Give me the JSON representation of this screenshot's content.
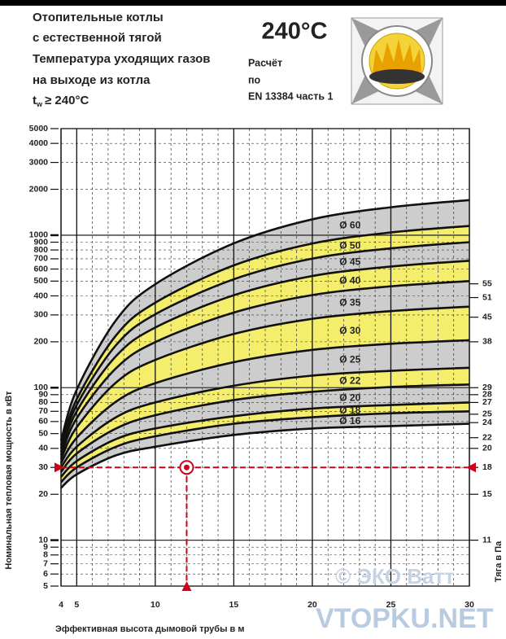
{
  "header": {
    "lines": [
      "Отопительные котлы",
      "с естественной тягой",
      "Температура уходящих газов",
      "на выходе из котла"
    ],
    "temp_symbol": "t",
    "temp_subscript": "w",
    "temp_condition": "≥ 240°C",
    "big": "240°C",
    "calc": [
      "Расчёт",
      "по",
      "EN 13384 часть 1"
    ]
  },
  "chart_data": {
    "type": "band",
    "xlabel": "Эффективная высота дымовой трубы в м",
    "ylabel": "Номинальная тепловая мощность в кВт",
    "xlim": [
      4,
      30
    ],
    "ylim": [
      5,
      5000
    ],
    "log_y": true,
    "xticks": [
      4,
      5,
      10,
      15,
      20,
      25,
      30
    ],
    "x_minor": [
      6,
      7,
      8,
      9,
      11,
      12,
      13,
      14,
      16,
      17,
      18,
      19,
      21,
      22,
      23,
      24,
      26,
      27,
      28,
      29
    ],
    "yticks": [
      5,
      6,
      7,
      8,
      9,
      10,
      20,
      30,
      40,
      50,
      60,
      70,
      80,
      90,
      100,
      200,
      300,
      400,
      500,
      600,
      700,
      800,
      900,
      1000,
      2000,
      3000,
      4000,
      5000
    ],
    "x": [
      4,
      5,
      7.5,
      10,
      15,
      20,
      25,
      30
    ],
    "line_color": "#111111",
    "boundaries": [
      {
        "values": [
          45,
          97,
          277,
          477,
          884,
          1271,
          1525,
          1700
        ]
      },
      {
        "values": [
          42,
          84,
          220,
          361,
          634,
          882,
          1042,
          1150
        ]
      },
      {
        "values": [
          40,
          77,
          190,
          303,
          514,
          702,
          820,
          900
        ]
      },
      {
        "values": [
          38,
          70,
          161,
          248,
          404,
          540,
          623,
          680
        ]
      },
      {
        "values": [
          36,
          63,
          134,
          199,
          311,
          405,
          462,
          500
        ]
      },
      {
        "values": [
          34,
          55,
          108,
          152,
          225,
          283,
          318,
          340
        ]
      },
      {
        "values": [
          32,
          47,
          81,
          107,
          147,
          177,
          194,
          205
        ]
      },
      {
        "values": [
          30,
          41,
          64,
          80,
          103,
          120,
          129,
          135
        ]
      },
      {
        "values": [
          28,
          37,
          54,
          66,
          83,
          94,
          101,
          105
        ]
      },
      {
        "values": [
          26,
          33,
          46,
          54,
          65,
          73,
          77,
          80
        ]
      },
      {
        "values": [
          24,
          30,
          41,
          48,
          58,
          64,
          68,
          70
        ]
      },
      {
        "values": [
          22,
          27,
          36,
          41,
          49,
          54,
          56,
          58
        ]
      }
    ],
    "series": [
      {
        "name": "Ø 60",
        "color": "#cdcdcd"
      },
      {
        "name": "Ø 50",
        "color": "#f4ee6c"
      },
      {
        "name": "Ø 45",
        "color": "#cdcdcd"
      },
      {
        "name": "Ø 40",
        "color": "#f4ee6c"
      },
      {
        "name": "Ø 35",
        "color": "#cdcdcd"
      },
      {
        "name": "Ø 30",
        "color": "#f4ee6c"
      },
      {
        "name": "Ø 25",
        "color": "#cdcdcd"
      },
      {
        "name": "Ø 22",
        "color": "#f4ee6c"
      },
      {
        "name": "Ø 20",
        "color": "#cdcdcd"
      },
      {
        "name": "Ø 18",
        "color": "#f4ee6c"
      },
      {
        "name": "Ø 16",
        "color": "#cdcdcd"
      }
    ],
    "draft_axis": {
      "label": "Тяга в Па",
      "ticks": [
        55,
        51,
        45,
        38,
        29,
        28,
        27,
        25,
        24,
        22,
        20,
        18,
        15,
        11
      ],
      "at_power": [
        480,
        390,
        290,
        200,
        100,
        90,
        80,
        67,
        59,
        47,
        40,
        30,
        20,
        10
      ]
    },
    "example": {
      "x": 12,
      "y": 30,
      "color": "#d0021b"
    }
  },
  "watermark": [
    "© ЭКО Ватт",
    "VTOPKU.NET"
  ]
}
